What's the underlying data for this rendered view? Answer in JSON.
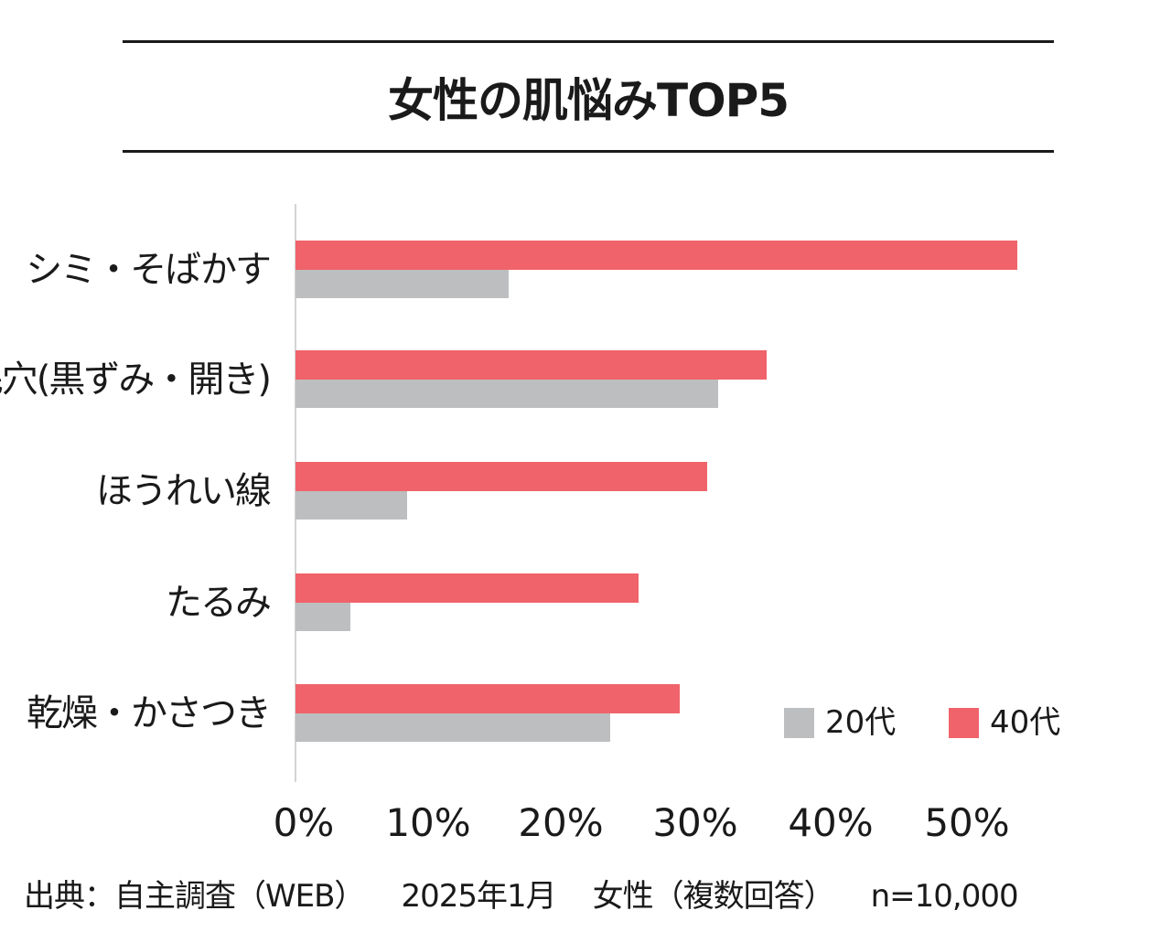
{
  "header": {
    "title": "女性の肌悩みTOP5"
  },
  "legend": {
    "items": [
      {
        "label": "20代",
        "color": "#bdbebf"
      },
      {
        "label": "40代",
        "color": "#f0636a"
      }
    ]
  },
  "axis": {
    "ticks": [
      "0%",
      "10%",
      "20%",
      "30%",
      "40%",
      "50%"
    ]
  },
  "footer": {
    "source": "出典：自主調査（WEB）",
    "date": "2025年1月",
    "target": "女性（複数回答）",
    "sample": "n=10,000"
  },
  "chart_data": {
    "type": "bar",
    "orientation": "horizontal",
    "title": "女性の肌悩みTOP5",
    "categories": [
      "シミ・そばかす",
      "毛穴(黒ずみ・開き)",
      "ほうれい線",
      "たるみ",
      "乾燥・かさつき"
    ],
    "series": [
      {
        "name": "40代",
        "color": "#f0636a",
        "values": [
          53.5,
          34.9,
          30.5,
          25.4,
          28.5
        ]
      },
      {
        "name": "20代",
        "color": "#bdbebf",
        "values": [
          15.8,
          31.3,
          8.3,
          4.1,
          23.3
        ]
      }
    ],
    "xlabel": "",
    "ylabel": "",
    "xlim": [
      0,
      55
    ],
    "x_ticks": [
      "0%",
      "10%",
      "20%",
      "30%",
      "40%",
      "50%"
    ],
    "grid": false,
    "legend_position": "bottom-right inside",
    "annotations": [
      "出典：自主調査（WEB）　2025年1月　女性（複数回答）　n=10,000"
    ]
  }
}
